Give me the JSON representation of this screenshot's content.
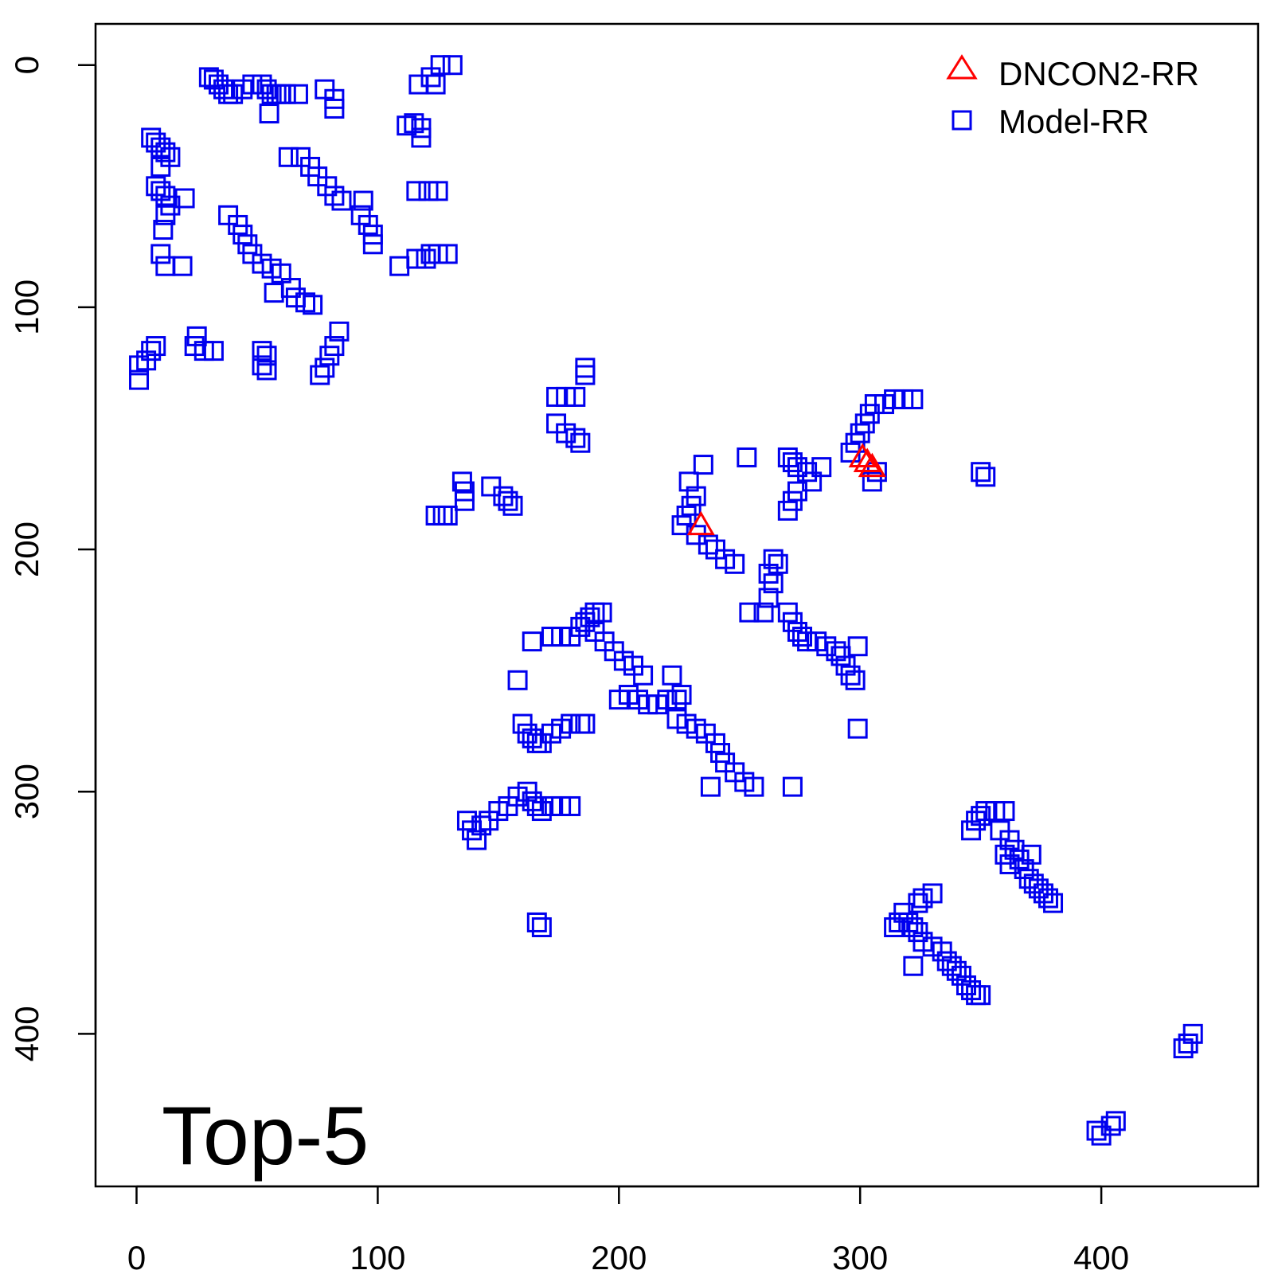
{
  "chart_data": {
    "type": "scatter",
    "title": "",
    "xlabel": "",
    "ylabel": "",
    "xlim": [
      -17,
      465
    ],
    "ylim": [
      -17,
      463
    ],
    "y_inverted": true,
    "x_ticks": [
      "0",
      "100",
      "200",
      "300",
      "400"
    ],
    "y_ticks": [
      "0",
      "100",
      "200",
      "300",
      "400"
    ],
    "grid": false,
    "legend_position": "top-right",
    "annotation": "Top-5",
    "colors": {
      "dncon2": "#ff0000",
      "model": "#0000ee",
      "axis": "#000000"
    },
    "series": [
      {
        "name": "DNCON2-RR",
        "marker": "triangle",
        "points": [
          [
            234,
            190
          ],
          [
            301,
            162
          ],
          [
            303,
            164
          ],
          [
            305,
            166
          ]
        ]
      },
      {
        "name": "Model-RR",
        "marker": "square",
        "points": [
          [
            30,
            5
          ],
          [
            32,
            6
          ],
          [
            34,
            8
          ],
          [
            36,
            10
          ],
          [
            38,
            12
          ],
          [
            40,
            12
          ],
          [
            44,
            10
          ],
          [
            48,
            8
          ],
          [
            52,
            8
          ],
          [
            54,
            10
          ],
          [
            56,
            12
          ],
          [
            58,
            12
          ],
          [
            60,
            12
          ],
          [
            62,
            12
          ],
          [
            67,
            12
          ],
          [
            55,
            20
          ],
          [
            78,
            10
          ],
          [
            82,
            14
          ],
          [
            82,
            18
          ],
          [
            117,
            8
          ],
          [
            122,
            5
          ],
          [
            124,
            8
          ],
          [
            126,
            0
          ],
          [
            131,
            0
          ],
          [
            112,
            25
          ],
          [
            115,
            24
          ],
          [
            118,
            26
          ],
          [
            118,
            30
          ],
          [
            6,
            30
          ],
          [
            8,
            32
          ],
          [
            10,
            34
          ],
          [
            12,
            36
          ],
          [
            14,
            38
          ],
          [
            10,
            42
          ],
          [
            8,
            50
          ],
          [
            10,
            52
          ],
          [
            12,
            54
          ],
          [
            14,
            58
          ],
          [
            12,
            62
          ],
          [
            11,
            68
          ],
          [
            20,
            55
          ],
          [
            10,
            78
          ],
          [
            12,
            83
          ],
          [
            19,
            83
          ],
          [
            63,
            38
          ],
          [
            68,
            38
          ],
          [
            72,
            42
          ],
          [
            75,
            46
          ],
          [
            79,
            50
          ],
          [
            82,
            54
          ],
          [
            85,
            56
          ],
          [
            94,
            56
          ],
          [
            93,
            62
          ],
          [
            96,
            66
          ],
          [
            98,
            70
          ],
          [
            98,
            74
          ],
          [
            38,
            62
          ],
          [
            42,
            66
          ],
          [
            44,
            70
          ],
          [
            46,
            74
          ],
          [
            48,
            78
          ],
          [
            52,
            82
          ],
          [
            56,
            84
          ],
          [
            60,
            86
          ],
          [
            57,
            94
          ],
          [
            64,
            92
          ],
          [
            66,
            96
          ],
          [
            70,
            98
          ],
          [
            73,
            99
          ],
          [
            116,
            52
          ],
          [
            121,
            52
          ],
          [
            125,
            52
          ],
          [
            116,
            80
          ],
          [
            120,
            80
          ],
          [
            122,
            78
          ],
          [
            125,
            78
          ],
          [
            129,
            78
          ],
          [
            109,
            83
          ],
          [
            1,
            124
          ],
          [
            4,
            122
          ],
          [
            6,
            118
          ],
          [
            8,
            116
          ],
          [
            1,
            130
          ],
          [
            25,
            112
          ],
          [
            24,
            116
          ],
          [
            28,
            118
          ],
          [
            32,
            118
          ],
          [
            52,
            118
          ],
          [
            52,
            124
          ],
          [
            54,
            126
          ],
          [
            54,
            120
          ],
          [
            78,
            125
          ],
          [
            80,
            120
          ],
          [
            82,
            116
          ],
          [
            84,
            110
          ],
          [
            76,
            128
          ],
          [
            174,
            137
          ],
          [
            178,
            137
          ],
          [
            182,
            137
          ],
          [
            174,
            148
          ],
          [
            178,
            152
          ],
          [
            182,
            154
          ],
          [
            184,
            156
          ],
          [
            186,
            128
          ],
          [
            186,
            125
          ],
          [
            135,
            172
          ],
          [
            136,
            176
          ],
          [
            136,
            180
          ],
          [
            147,
            174
          ],
          [
            152,
            178
          ],
          [
            154,
            180
          ],
          [
            156,
            182
          ],
          [
            124,
            186
          ],
          [
            127,
            186
          ],
          [
            129,
            186
          ],
          [
            235,
            165
          ],
          [
            229,
            172
          ],
          [
            232,
            178
          ],
          [
            230,
            182
          ],
          [
            228,
            186
          ],
          [
            226,
            190
          ],
          [
            232,
            194
          ],
          [
            237,
            198
          ],
          [
            240,
            200
          ],
          [
            244,
            204
          ],
          [
            248,
            206
          ],
          [
            253,
            162
          ],
          [
            264,
            204
          ],
          [
            266,
            206
          ],
          [
            262,
            210
          ],
          [
            264,
            214
          ],
          [
            262,
            220
          ],
          [
            254,
            226
          ],
          [
            260,
            226
          ],
          [
            270,
            162
          ],
          [
            272,
            164
          ],
          [
            274,
            166
          ],
          [
            278,
            168
          ],
          [
            280,
            172
          ],
          [
            284,
            166
          ],
          [
            274,
            176
          ],
          [
            272,
            180
          ],
          [
            270,
            184
          ],
          [
            296,
            160
          ],
          [
            298,
            156
          ],
          [
            300,
            152
          ],
          [
            302,
            148
          ],
          [
            304,
            144
          ],
          [
            306,
            140
          ],
          [
            310,
            140
          ],
          [
            314,
            138
          ],
          [
            318,
            138
          ],
          [
            322,
            138
          ],
          [
            305,
            172
          ],
          [
            307,
            168
          ],
          [
            350,
            168
          ],
          [
            352,
            170
          ],
          [
            270,
            226
          ],
          [
            272,
            230
          ],
          [
            274,
            234
          ],
          [
            276,
            236
          ],
          [
            278,
            238
          ],
          [
            282,
            238
          ],
          [
            286,
            240
          ],
          [
            290,
            242
          ],
          [
            292,
            244
          ],
          [
            294,
            248
          ],
          [
            296,
            252
          ],
          [
            298,
            254
          ],
          [
            299,
            240
          ],
          [
            299,
            274
          ],
          [
            184,
            232
          ],
          [
            186,
            230
          ],
          [
            188,
            228
          ],
          [
            190,
            226
          ],
          [
            193,
            226
          ],
          [
            190,
            234
          ],
          [
            194,
            238
          ],
          [
            198,
            242
          ],
          [
            202,
            246
          ],
          [
            206,
            248
          ],
          [
            210,
            252
          ],
          [
            164,
            238
          ],
          [
            172,
            236
          ],
          [
            176,
            236
          ],
          [
            180,
            236
          ],
          [
            158,
            254
          ],
          [
            200,
            262
          ],
          [
            204,
            260
          ],
          [
            208,
            262
          ],
          [
            212,
            264
          ],
          [
            216,
            264
          ],
          [
            220,
            262
          ],
          [
            224,
            262
          ],
          [
            226,
            260
          ],
          [
            222,
            252
          ],
          [
            224,
            270
          ],
          [
            228,
            272
          ],
          [
            232,
            274
          ],
          [
            236,
            276
          ],
          [
            240,
            280
          ],
          [
            242,
            284
          ],
          [
            244,
            288
          ],
          [
            248,
            292
          ],
          [
            252,
            296
          ],
          [
            256,
            298
          ],
          [
            272,
            298
          ],
          [
            238,
            298
          ],
          [
            160,
            272
          ],
          [
            162,
            276
          ],
          [
            164,
            278
          ],
          [
            166,
            280
          ],
          [
            168,
            280
          ],
          [
            172,
            276
          ],
          [
            176,
            274
          ],
          [
            180,
            272
          ],
          [
            184,
            272
          ],
          [
            186,
            272
          ],
          [
            137,
            312
          ],
          [
            139,
            316
          ],
          [
            141,
            320
          ],
          [
            143,
            314
          ],
          [
            146,
            312
          ],
          [
            150,
            308
          ],
          [
            154,
            306
          ],
          [
            158,
            302
          ],
          [
            162,
            300
          ],
          [
            164,
            304
          ],
          [
            166,
            306
          ],
          [
            168,
            308
          ],
          [
            172,
            306
          ],
          [
            176,
            306
          ],
          [
            180,
            306
          ],
          [
            166,
            354
          ],
          [
            168,
            356
          ],
          [
            346,
            316
          ],
          [
            348,
            312
          ],
          [
            350,
            310
          ],
          [
            352,
            308
          ],
          [
            356,
            308
          ],
          [
            360,
            308
          ],
          [
            358,
            316
          ],
          [
            362,
            320
          ],
          [
            364,
            324
          ],
          [
            366,
            328
          ],
          [
            368,
            332
          ],
          [
            370,
            336
          ],
          [
            372,
            338
          ],
          [
            374,
            340
          ],
          [
            376,
            342
          ],
          [
            378,
            344
          ],
          [
            380,
            346
          ],
          [
            360,
            326
          ],
          [
            362,
            330
          ],
          [
            371,
            326
          ],
          [
            318,
            350
          ],
          [
            320,
            354
          ],
          [
            322,
            356
          ],
          [
            324,
            358
          ],
          [
            326,
            362
          ],
          [
            330,
            364
          ],
          [
            334,
            366
          ],
          [
            336,
            370
          ],
          [
            338,
            372
          ],
          [
            340,
            374
          ],
          [
            342,
            376
          ],
          [
            344,
            380
          ],
          [
            346,
            382
          ],
          [
            348,
            384
          ],
          [
            350,
            384
          ],
          [
            314,
            356
          ],
          [
            316,
            354
          ],
          [
            324,
            346
          ],
          [
            326,
            344
          ],
          [
            330,
            342
          ],
          [
            322,
            372
          ],
          [
            434,
            406
          ],
          [
            436,
            404
          ],
          [
            438,
            400
          ],
          [
            398,
            440
          ],
          [
            400,
            442
          ],
          [
            404,
            438
          ],
          [
            406,
            436
          ]
        ]
      }
    ]
  }
}
